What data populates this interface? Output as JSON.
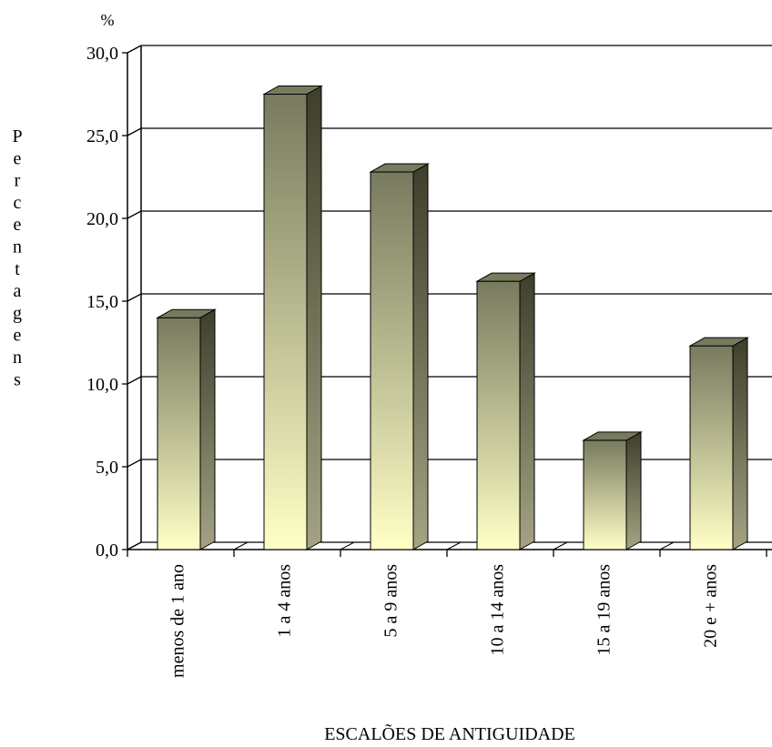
{
  "chart_data": {
    "type": "bar",
    "style": "3d-column",
    "unit_label": "%",
    "ylabel_vertical": "Percentagens",
    "xlabel": "ESCALÕES DE ANTIGUIDADE",
    "ylim": [
      0,
      30
    ],
    "ytick_labels": [
      "0,0",
      "5,0",
      "10,0",
      "15,0",
      "20,0",
      "25,0",
      "30,0"
    ],
    "ytick_values": [
      0,
      5,
      10,
      15,
      20,
      25,
      30
    ],
    "categories": [
      "menos de 1 ano",
      "1 a 4 anos",
      "5 a 9 anos",
      "10 a 14 anos",
      "15 a 19 anos",
      "20 e + anos"
    ],
    "values": [
      14.0,
      27.5,
      22.8,
      16.2,
      6.6,
      12.3
    ],
    "grid": true,
    "legend": "none",
    "colors": {
      "bar_top_color": "#787a5e",
      "bar_bottom_color": "#ffffc6",
      "bar_side_color": "#4a4a36",
      "bar_cap_color": "#9a9b7a",
      "grid_color": "#000000"
    }
  }
}
